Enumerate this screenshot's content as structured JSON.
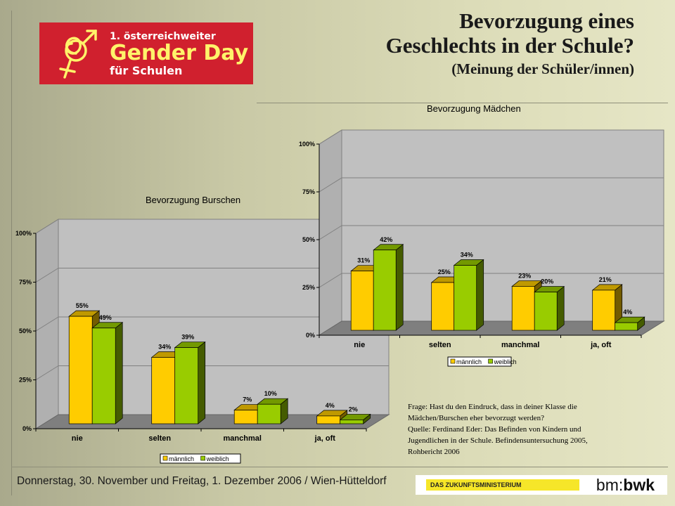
{
  "header": {
    "title_line1": "Bevorzugung eines",
    "title_line2": "Geschlechts in der Schule?",
    "subtitle": "(Meinung der Schüler/innen)"
  },
  "logo": {
    "line1": "1. österreichweiter",
    "line2": "Gender Day",
    "line3": "für Schulen"
  },
  "footnote": {
    "line1": "Frage: Hast du den Eindruck, dass in deiner Klasse die",
    "line2": "Mädchen/Burschen eher bevorzugt werden?",
    "line3": "Quelle:  Ferdinand Eder: Das Befinden von Kindern und",
    "line4": "Jugendlichen in der Schule. Befindensuntersuchung 2005,",
    "line5": "Rohbericht 2006"
  },
  "footer": {
    "date_text": "Donnerstag, 30. November und Freitag, 1. Dezember 2006 / Wien-Hütteldorf",
    "ministry_text": "DAS ZUKUNFTSMINISTERIUM",
    "bm_logo_pre": "bm:",
    "bm_logo_bold": "bwk"
  },
  "colors": {
    "maennlich": "#ffcc00",
    "weiblich": "#99cc00"
  },
  "chart_data": [
    {
      "type": "bar",
      "title": "Bevorzugung Burschen",
      "categories": [
        "nie",
        "selten",
        "manchmal",
        "ja, oft"
      ],
      "ylim": [
        0,
        100
      ],
      "yticks": [
        "0%",
        "25%",
        "50%",
        "75%",
        "100%"
      ],
      "series": [
        {
          "name": "männlich",
          "values": [
            55,
            34,
            7,
            4
          ],
          "labels": [
            "55%",
            "34%",
            "7%",
            "4%"
          ]
        },
        {
          "name": "weiblich",
          "values": [
            49,
            39,
            10,
            2
          ],
          "labels": [
            "49%",
            "39%",
            "10%",
            "2%"
          ]
        }
      ],
      "legend": "bottom"
    },
    {
      "type": "bar",
      "title": "Bevorzugung Mädchen",
      "categories": [
        "nie",
        "selten",
        "manchmal",
        "ja, oft"
      ],
      "ylim": [
        0,
        100
      ],
      "yticks": [
        "0%",
        "25%",
        "50%",
        "75%",
        "100%"
      ],
      "series": [
        {
          "name": "männlich",
          "values": [
            31,
            25,
            23,
            21
          ],
          "labels": [
            "31%",
            "25%",
            "23%",
            "21%"
          ]
        },
        {
          "name": "weiblich",
          "values": [
            42,
            34,
            20,
            4
          ],
          "labels": [
            "42%",
            "34%",
            "20%",
            "4%"
          ]
        }
      ],
      "legend": "bottom"
    }
  ]
}
